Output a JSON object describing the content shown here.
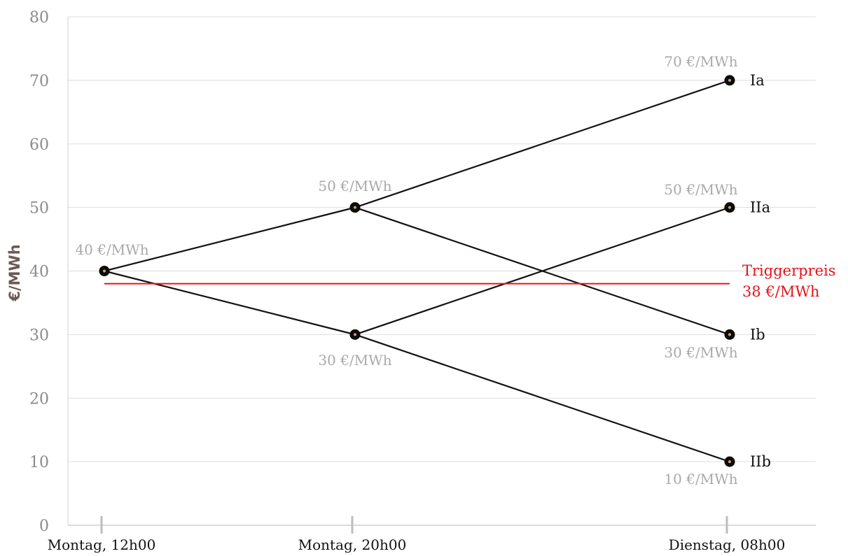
{
  "chart_data": {
    "type": "line",
    "ylabel": "€/MWh",
    "ylim": [
      0,
      80
    ],
    "yticks": [
      0,
      10,
      20,
      30,
      40,
      50,
      60,
      70,
      80
    ],
    "grid": true,
    "categories": [
      "Montag, 12h00",
      "Montag, 20h00",
      "Dienstag, 08h00"
    ],
    "nodes": [
      {
        "id": "n0",
        "x": 0,
        "y": 40,
        "label": "40 €/MWh",
        "tag": ""
      },
      {
        "id": "n1",
        "x": 1,
        "y": 50,
        "label": "50 €/MWh",
        "tag": ""
      },
      {
        "id": "n2",
        "x": 1,
        "y": 30,
        "label": "30 €/MWh",
        "tag": ""
      },
      {
        "id": "n3",
        "x": 2,
        "y": 70,
        "label": "70 €/MWh",
        "tag": "Ia"
      },
      {
        "id": "n4",
        "x": 2,
        "y": 30,
        "label": "30 €/MWh",
        "tag": "Ib"
      },
      {
        "id": "n5",
        "x": 2,
        "y": 50,
        "label": "50 €/MWh",
        "tag": "IIa"
      },
      {
        "id": "n6",
        "x": 2,
        "y": 10,
        "label": "10 €/MWh",
        "tag": "IIb"
      }
    ],
    "edges": [
      [
        "n0",
        "n1"
      ],
      [
        "n0",
        "n2"
      ],
      [
        "n1",
        "n3"
      ],
      [
        "n1",
        "n4"
      ],
      [
        "n2",
        "n5"
      ],
      [
        "n2",
        "n6"
      ]
    ],
    "trigger": {
      "value": 38,
      "label_line1": "Triggerpreis",
      "label_line2": "38 €/MWh",
      "color": "#e3141b"
    },
    "line_color": "#111111",
    "grid_color": "#dddddd"
  }
}
